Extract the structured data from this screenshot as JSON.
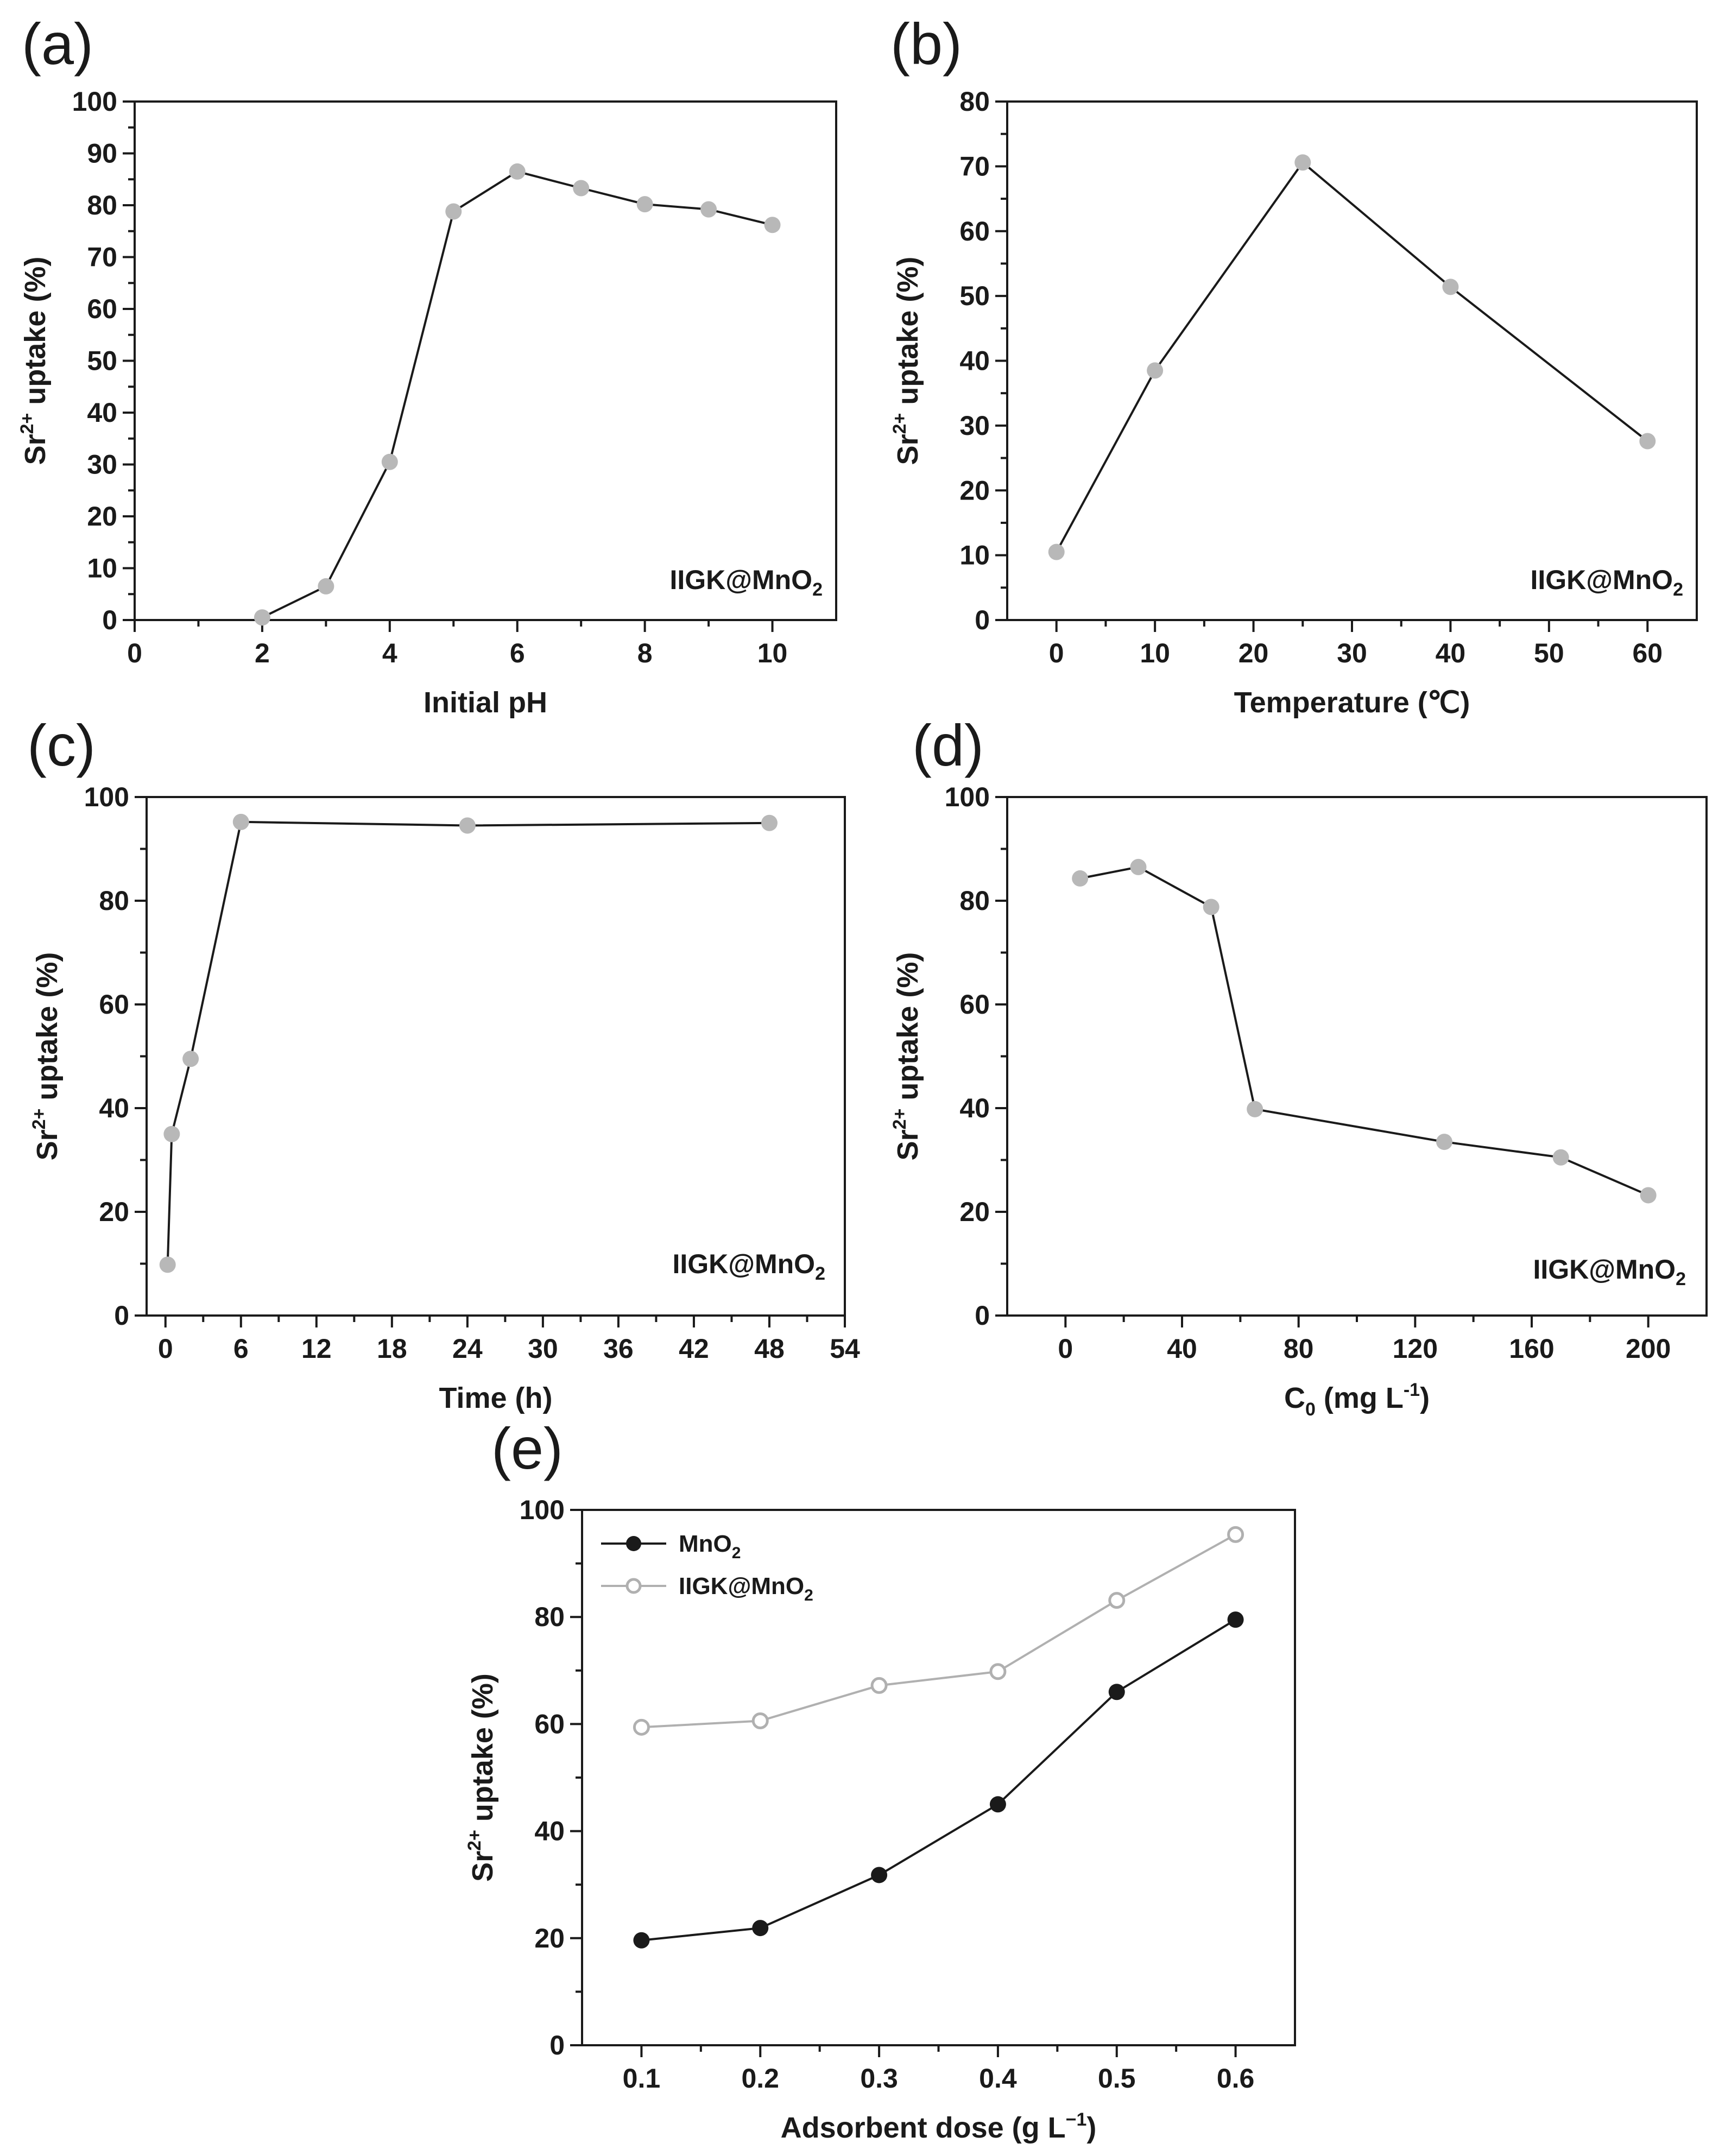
{
  "chart_data": [
    {
      "panel": "(a)",
      "type": "line",
      "x": [
        2,
        3,
        4,
        5,
        6,
        7,
        8,
        9,
        10
      ],
      "series": [
        {
          "name": "IIGK@MnO2",
          "values": [
            0.5,
            6.5,
            30.5,
            78.8,
            86.5,
            83.3,
            80.2,
            79.2,
            76.2
          ],
          "marker": "filled",
          "line_color": "#1a1a1a",
          "marker_color": "#b8b8b8"
        }
      ],
      "xlim": [
        0,
        11
      ],
      "ylim": [
        0,
        100
      ],
      "xticks": [
        0,
        2,
        4,
        6,
        8,
        10
      ],
      "yticks": [
        0,
        10,
        20,
        30,
        40,
        50,
        60,
        70,
        80,
        90,
        100
      ],
      "xlabel": "Initial pH",
      "ylabel": "Sr",
      "ylabel_sup": "2+",
      "ylabel_rest": " uptake (%)",
      "annotation": "IIGK@MnO",
      "annotation_sub": "2"
    },
    {
      "panel": "(b)",
      "type": "line",
      "x": [
        0,
        10,
        25,
        40,
        60
      ],
      "series": [
        {
          "name": "IIGK@MnO2",
          "values": [
            10.5,
            38.5,
            70.6,
            51.4,
            27.6
          ],
          "marker": "filled",
          "line_color": "#1a1a1a",
          "marker_color": "#b8b8b8"
        }
      ],
      "xlim": [
        -5,
        65
      ],
      "ylim": [
        0,
        80
      ],
      "xticks": [
        0,
        10,
        20,
        30,
        40,
        50,
        60
      ],
      "yticks": [
        0,
        10,
        20,
        30,
        40,
        50,
        60,
        70,
        80
      ],
      "xlabel": "Temperature (℃)",
      "ylabel": "Sr",
      "ylabel_sup": "2+",
      "ylabel_rest": " uptake (%)",
      "annotation": "IIGK@MnO",
      "annotation_sub": "2"
    },
    {
      "panel": "(c)",
      "type": "line",
      "x": [
        0.17,
        0.5,
        2,
        6,
        24,
        48
      ],
      "series": [
        {
          "name": "IIGK@MnO2",
          "values": [
            9.8,
            35,
            49.5,
            95.2,
            94.5,
            95
          ],
          "marker": "filled",
          "line_color": "#1a1a1a",
          "marker_color": "#b8b8b8"
        }
      ],
      "xlim": [
        -1.5,
        54
      ],
      "ylim": [
        0,
        100
      ],
      "xticks": [
        0,
        6,
        12,
        18,
        24,
        30,
        36,
        42,
        48,
        54
      ],
      "yticks": [
        0,
        20,
        40,
        60,
        80,
        100
      ],
      "xlabel": "Time (h)",
      "ylabel": "Sr",
      "ylabel_sup": "2+",
      "ylabel_rest": " uptake (%)",
      "annotation": "IIGK@MnO",
      "annotation_sub": "2"
    },
    {
      "panel": "(d)",
      "type": "line",
      "x": [
        5,
        25,
        50,
        65,
        130,
        170,
        200
      ],
      "series": [
        {
          "name": "IIGK@MnO2",
          "values": [
            84.3,
            86.5,
            78.8,
            39.8,
            33.5,
            30.5,
            23.2
          ],
          "marker": "filled",
          "line_color": "#1a1a1a",
          "marker_color": "#b8b8b8"
        }
      ],
      "xlim": [
        -20,
        220
      ],
      "ylim": [
        0,
        100
      ],
      "xticks": [
        0,
        40,
        80,
        120,
        160,
        200
      ],
      "yticks": [
        0,
        20,
        40,
        60,
        80,
        100
      ],
      "xlabel": "C",
      "xlabel_sub": "0",
      "xlabel_rest": " (mg L",
      "xlabel_sup": "-1",
      "xlabel_end": ")",
      "ylabel": "Sr",
      "ylabel_sup": "2+",
      "ylabel_rest": " uptake (%)",
      "annotation": "IIGK@MnO",
      "annotation_sub": "2"
    },
    {
      "panel": "(e)",
      "type": "line",
      "x": [
        0.1,
        0.2,
        0.3,
        0.4,
        0.5,
        0.6
      ],
      "series": [
        {
          "name": "MnO",
          "name_sub": "2",
          "values": [
            19.6,
            21.9,
            31.8,
            45,
            66,
            79.5
          ],
          "marker": "filled",
          "line_color": "#1a1a1a",
          "marker_color": "#1a1a1a"
        },
        {
          "name": "IIGK@MnO",
          "name_sub": "2",
          "values": [
            59.4,
            60.6,
            67.2,
            69.8,
            83.1,
            95.4
          ],
          "marker": "open",
          "line_color": "#b0b0b0",
          "marker_color": "#b0b0b0"
        }
      ],
      "xlim": [
        0.05,
        0.65
      ],
      "ylim": [
        0,
        100
      ],
      "xticks": [
        0.1,
        0.2,
        0.3,
        0.4,
        0.5,
        0.6
      ],
      "yticks": [
        0,
        20,
        40,
        60,
        80,
        100
      ],
      "xlabel": "Adsorbent dose  (g L",
      "xlabel_sup": "−1",
      "xlabel_end": ")",
      "ylabel": "Sr",
      "ylabel_sup": "2+",
      "ylabel_rest": " uptake (%)",
      "legend": "top-left"
    }
  ]
}
